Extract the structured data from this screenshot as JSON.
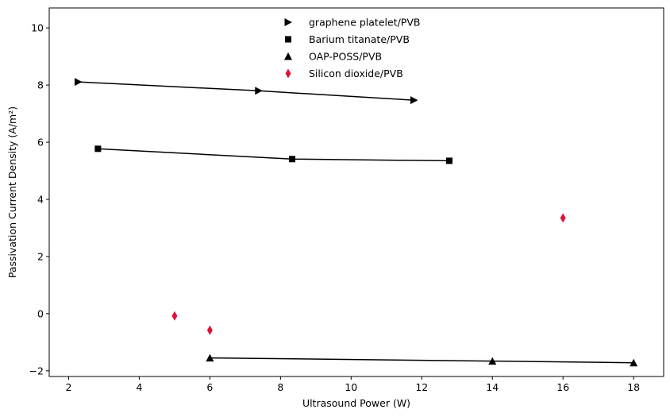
{
  "chart_data": {
    "type": "scatter",
    "title": "",
    "xlabel": "Ultrasound Power (W)",
    "ylabel": "Passivation Current Density (A/m²)",
    "xlim": [
      1.45,
      18.85
    ],
    "ylim": [
      -2.2,
      10.7
    ],
    "xticks": [
      2,
      4,
      6,
      8,
      10,
      12,
      14,
      16,
      18
    ],
    "yticks": [
      -2,
      0,
      2,
      4,
      6,
      8,
      10
    ],
    "xtick_labels": [
      "2",
      "4",
      "6",
      "8",
      "10",
      "12",
      "14",
      "16",
      "18"
    ],
    "ytick_labels": [
      "−2",
      "0",
      "2",
      "4",
      "6",
      "8",
      "10"
    ],
    "grid": false,
    "legend_position": "top-center",
    "series": [
      {
        "name": "graphene platelet/PVB",
        "marker": "triangle-right",
        "color": "#000000",
        "line": true,
        "x": [
          2.27,
          7.38,
          11.78
        ],
        "y": [
          8.11,
          7.8,
          7.47
        ]
      },
      {
        "name": "Barium titanate/PVB",
        "marker": "square",
        "color": "#000000",
        "line": true,
        "x": [
          2.83,
          8.33,
          12.78
        ],
        "y": [
          5.77,
          5.41,
          5.35
        ]
      },
      {
        "name": "OAP-POSS/PVB",
        "marker": "triangle-up",
        "color": "#000000",
        "line": true,
        "x": [
          6.0,
          14.0,
          18.0
        ],
        "y": [
          -1.55,
          -1.66,
          -1.72
        ]
      },
      {
        "name": "Silicon dioxide/PVB",
        "marker": "thin-diamond",
        "color": "#dc143c",
        "line": false,
        "x": [
          5.0,
          6.0,
          16.0
        ],
        "y": [
          -0.08,
          -0.58,
          3.35
        ]
      }
    ]
  }
}
